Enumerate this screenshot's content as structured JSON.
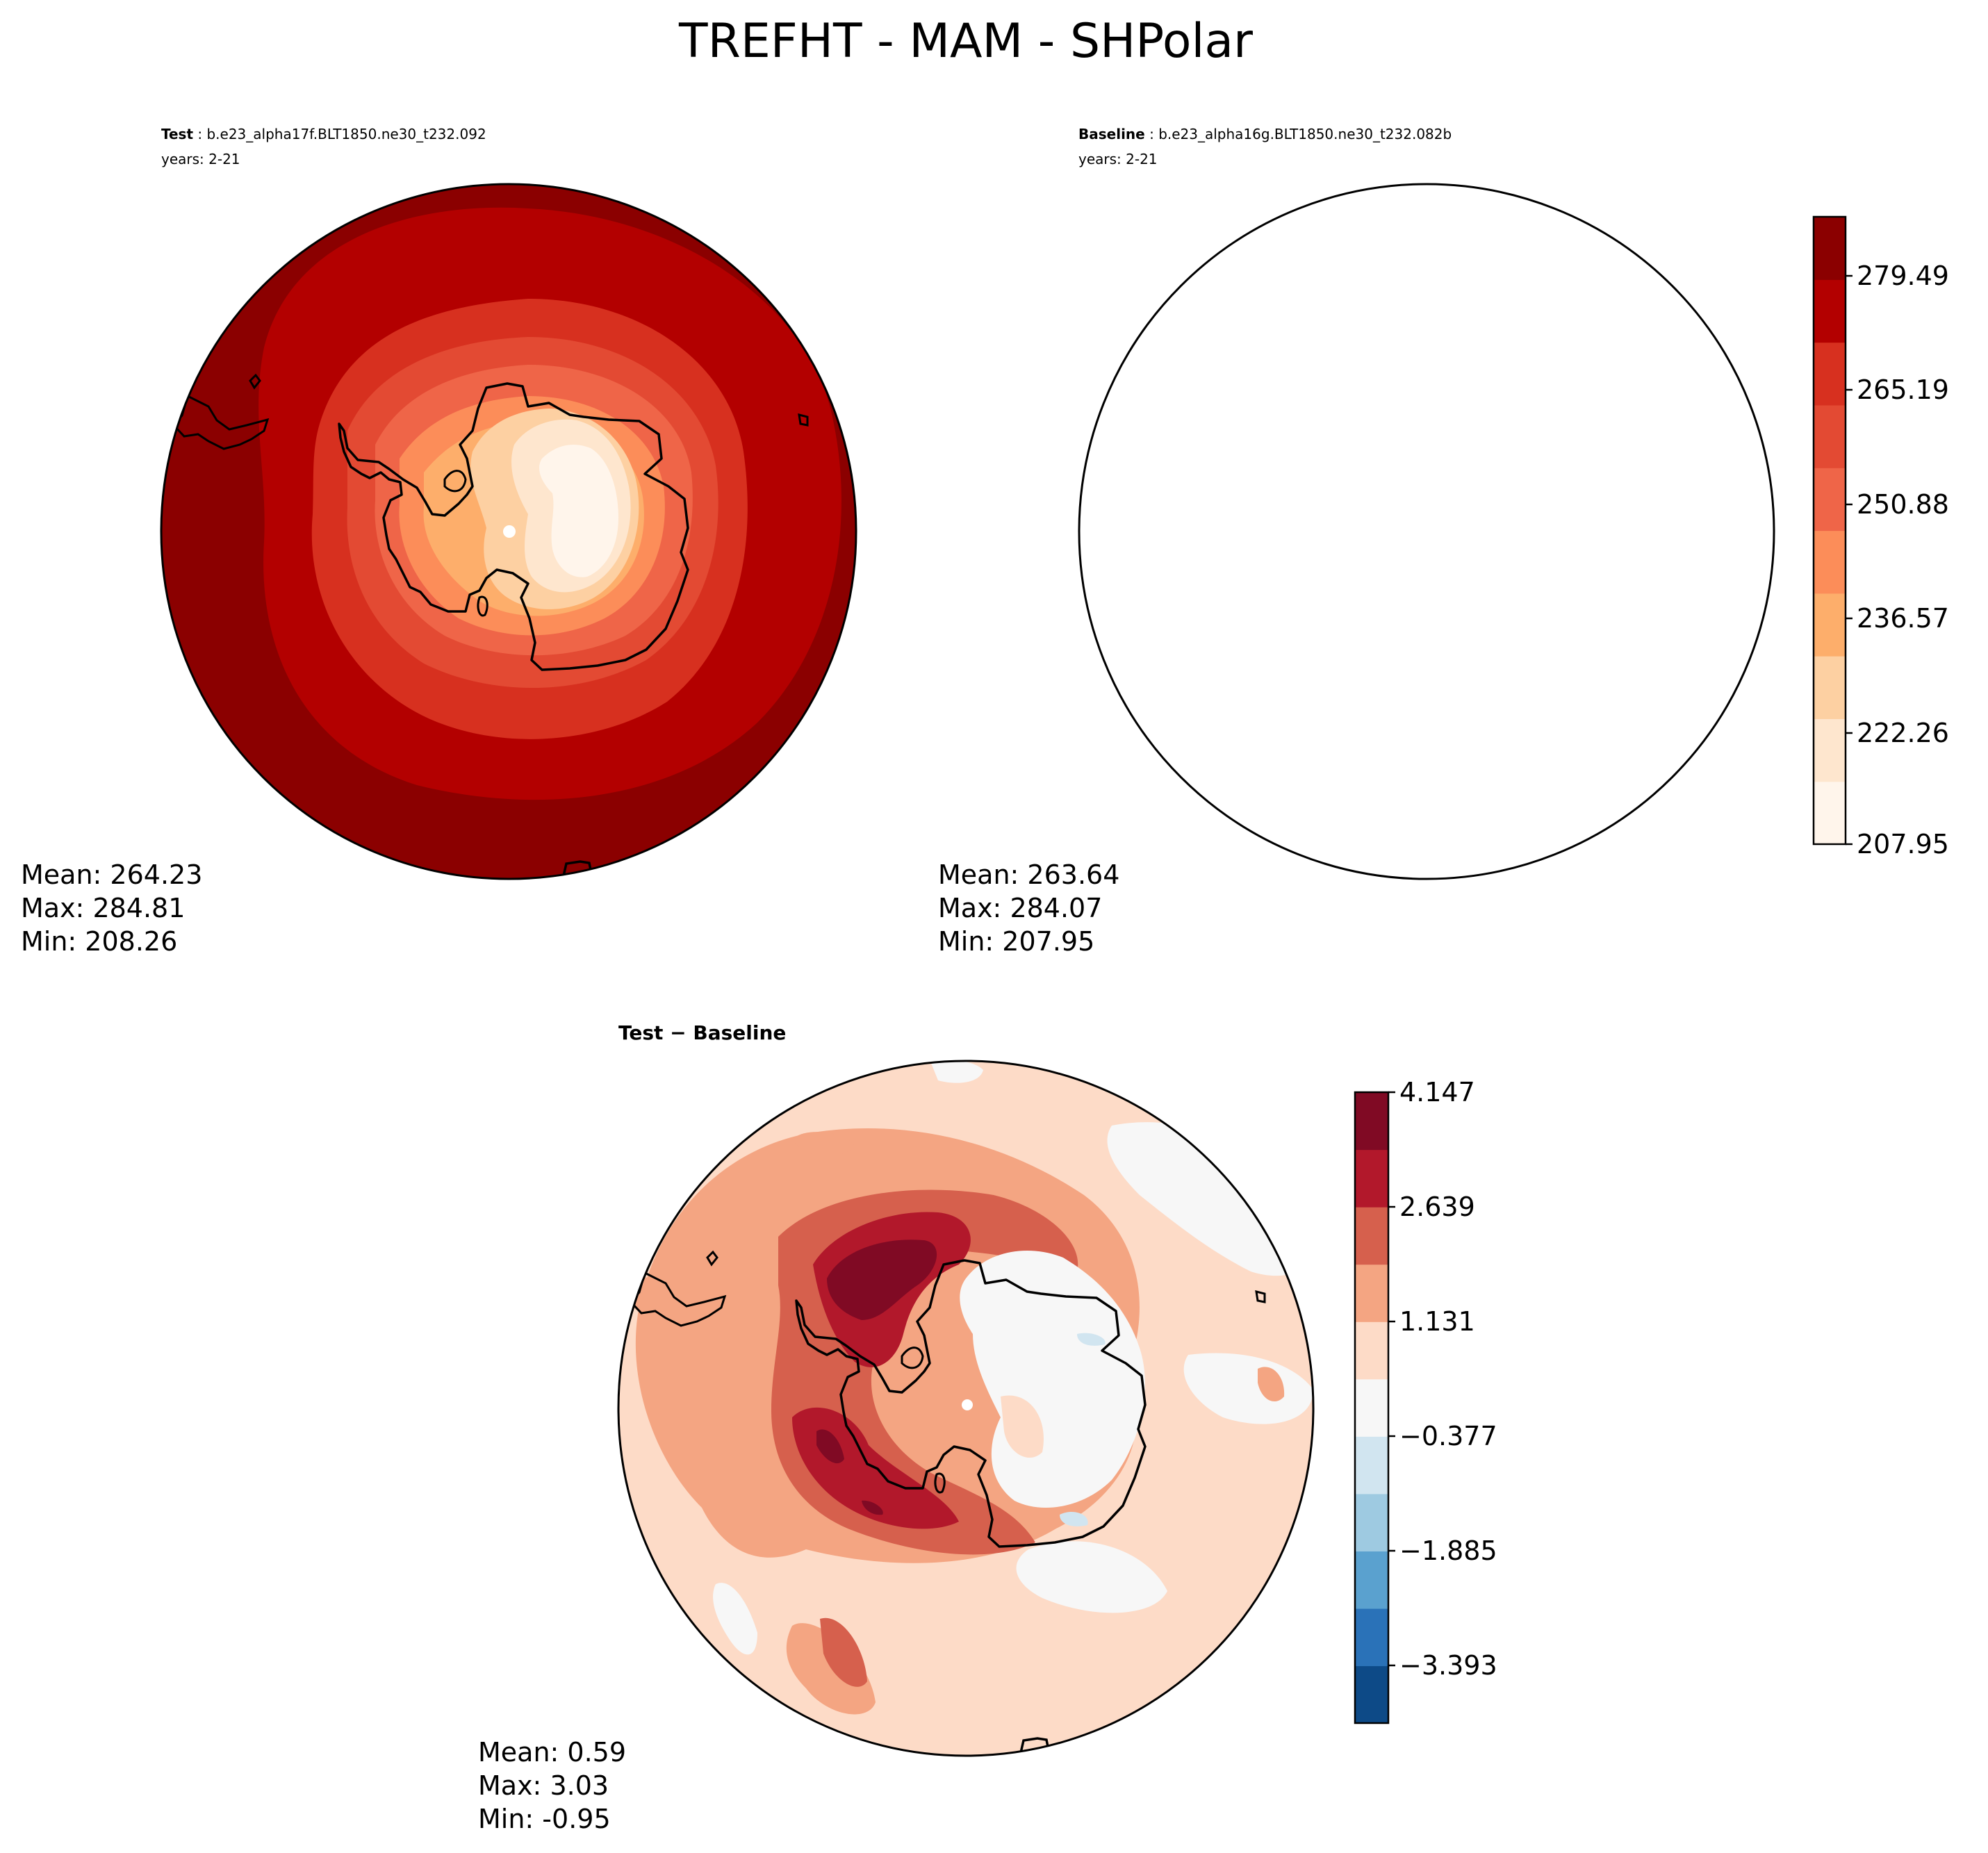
{
  "title": "TREFHT - MAM - SHPolar",
  "panels": {
    "test": {
      "label": "Test",
      "case": " : b.e23_alpha17f.BLT1850.ne30_t232.092",
      "years": "years: 2-21",
      "stats": {
        "mean": "Mean: 264.23",
        "max": "Max: 284.81",
        "min": "Min: 208.26"
      }
    },
    "baseline": {
      "label": "Baseline",
      "case": " : b.e23_alpha16g.BLT1850.ne30_t232.082b",
      "years": "years: 2-21",
      "stats": {
        "mean": "Mean: 263.64",
        "max": "Max: 284.07",
        "min": "Min: 207.95"
      }
    },
    "diff": {
      "label": "Test − Baseline",
      "stats": {
        "mean": "Mean:  0.59",
        "max": "Max:  3.03",
        "min": "Min: -0.95"
      }
    }
  },
  "colorbars": {
    "main": {
      "ticks": [
        "279.49",
        "265.19",
        "250.88",
        "236.57",
        "222.26",
        "207.95"
      ],
      "colors": [
        "#fff5eb",
        "#fee6ce",
        "#fdd0a2",
        "#fdae6b",
        "#fc8d59",
        "#ef6548",
        "#e34a33",
        "#d7301f",
        "#b30000",
        "#8b0000"
      ]
    },
    "diff": {
      "ticks": [
        "4.147",
        "2.639",
        "1.131",
        "−0.377",
        "−1.885",
        "−3.393"
      ],
      "colors": [
        "#0d4a87",
        "#2a72b8",
        "#5aa1cf",
        "#9ecae1",
        "#d1e5f0",
        "#f7f7f7",
        "#fddbc7",
        "#f4a582",
        "#d6604d",
        "#b2182b",
        "#800a24"
      ]
    }
  }
}
